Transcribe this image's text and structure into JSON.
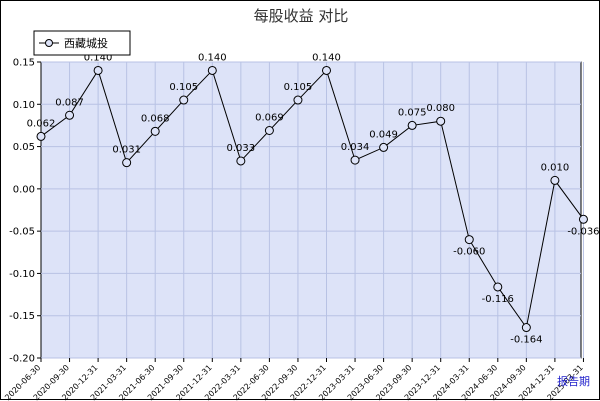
{
  "chart_data": {
    "type": "line",
    "title": "每股收益  对比",
    "xlabel": "",
    "ylabel": "",
    "ylim": [
      -0.2,
      0.15
    ],
    "yticks": [
      "0.15",
      "0.10",
      "0.05",
      "0.00",
      "-0.05",
      "-0.10",
      "-0.15",
      "-0.20"
    ],
    "x": [
      "2020-06-30",
      "2020-09-30",
      "2020-12-31",
      "2021-03-31",
      "2021-06-30",
      "2021-09-30",
      "2021-12-31",
      "2022-03-31",
      "2022-06-30",
      "2022-09-30",
      "2022-12-31",
      "2023-03-31",
      "2023-06-30",
      "2023-09-30",
      "2023-12-31",
      "2024-03-31",
      "2024-06-30",
      "2024-09-30",
      "2024-12-31",
      "2025-03-31"
    ],
    "series": [
      {
        "name": "西藏城投",
        "values": [
          0.062,
          0.087,
          0.14,
          0.031,
          0.068,
          0.105,
          0.14,
          0.033,
          0.069,
          0.105,
          0.14,
          0.034,
          0.049,
          0.075,
          0.08,
          -0.06,
          -0.116,
          -0.164,
          0.01,
          -0.036
        ],
        "labels": [
          "0.062",
          "0.087",
          "0.140",
          "0.031",
          "0.068",
          "0.105",
          "0.140",
          "0.033",
          "0.069",
          "0.105",
          "0.140",
          "0.034",
          "0.049",
          "0.075",
          "0.080",
          "-0.060",
          "-0.116",
          "-0.164",
          "0.010",
          "-0.036"
        ]
      }
    ],
    "grid": true,
    "legend_position": "top-left",
    "colors": {
      "plot_background": "#dde3f8",
      "grid": "#b8c2e4",
      "line": "#000000"
    }
  },
  "ui": {
    "period_label": "报告期"
  }
}
